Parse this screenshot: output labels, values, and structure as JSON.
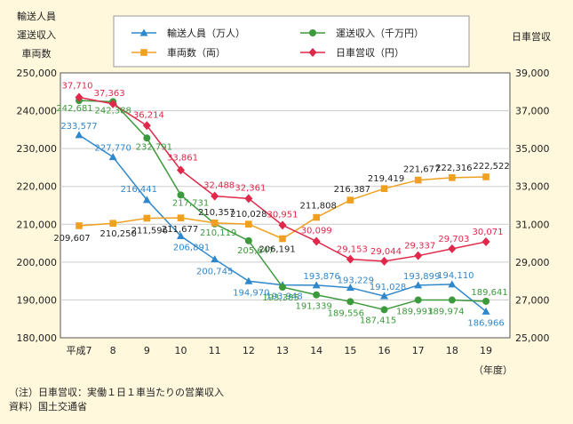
{
  "chart_data": {
    "type": "line",
    "left_axis_title": [
      "輸送人員",
      "運送収入",
      "車両数"
    ],
    "right_axis_title": "日車営収",
    "categories": [
      "平成7",
      "8",
      "9",
      "10",
      "11",
      "12",
      "13",
      "14",
      "15",
      "16",
      "17",
      "18",
      "19"
    ],
    "x_unit": "（年度）",
    "left_ylim": [
      180000,
      250000
    ],
    "left_ticks": [
      "250,000",
      "240,000",
      "230,000",
      "220,000",
      "210,000",
      "200,000",
      "190,000",
      "180,000"
    ],
    "right_ylim": [
      25000,
      39000
    ],
    "right_ticks": [
      "39,000",
      "37,000",
      "35,000",
      "33,000",
      "31,000",
      "29,000",
      "27,000",
      "25,000"
    ],
    "series": [
      {
        "name": "輸送人員（万人）",
        "axis": "left",
        "color": "#2f87cc",
        "marker": "triangle",
        "values": [
          233577,
          227770,
          216441,
          206891,
          200745,
          194970,
          193948,
          193876,
          193229,
          191028,
          193899,
          194110,
          186966
        ],
        "labels": [
          "233,577",
          "227,770",
          "216,441",
          "206,891",
          "200,745",
          "194,970",
          "193,948",
          "193,876",
          "193,229",
          "191,028",
          "193,899",
          "194,110",
          "186,966"
        ]
      },
      {
        "name": "運送収入（千万円）",
        "axis": "left",
        "color": "#3c9a3c",
        "marker": "circle",
        "values": [
          242681,
          242388,
          232791,
          217731,
          210119,
          205647,
          193385,
          191339,
          189556,
          187415,
          189993,
          189974,
          189641
        ],
        "labels": [
          "242,681",
          "242,388",
          "232,791",
          "217,731",
          "210,119",
          "205,647",
          "193,385",
          "191,339",
          "189,556",
          "187,415",
          "189,993",
          "189,974",
          "189,641"
        ]
      },
      {
        "name": "車両数（両）",
        "axis": "left",
        "color": "#f0a020",
        "marker": "square",
        "values": [
          209607,
          210250,
          211596,
          211677,
          210357,
          210028,
          206191,
          211808,
          216387,
          219419,
          221677,
          222316,
          222522
        ],
        "labels": [
          "209,607",
          "210,250",
          "211,596",
          "211,677",
          "210,357",
          "210,028",
          "206,191",
          "211,808",
          "216,387",
          "219,419",
          "221,677",
          "222,316",
          "222,522"
        ]
      },
      {
        "name": "日車営収（円）",
        "axis": "right",
        "color": "#e0284a",
        "marker": "diamond",
        "values": [
          37710,
          37363,
          36214,
          33861,
          32488,
          32361,
          30951,
          30099,
          29153,
          29044,
          29337,
          29703,
          30071
        ],
        "labels": [
          "37,710",
          "37,363",
          "36,214",
          "33,861",
          "32,488",
          "32,361",
          "30,951",
          "30,099",
          "29,153",
          "29,044",
          "29,337",
          "29,703",
          "30,071"
        ]
      }
    ]
  },
  "notes": {
    "note1": "（注）日車営収：実働１日１車当たりの営業収入",
    "source": "資料）国土交通省"
  }
}
